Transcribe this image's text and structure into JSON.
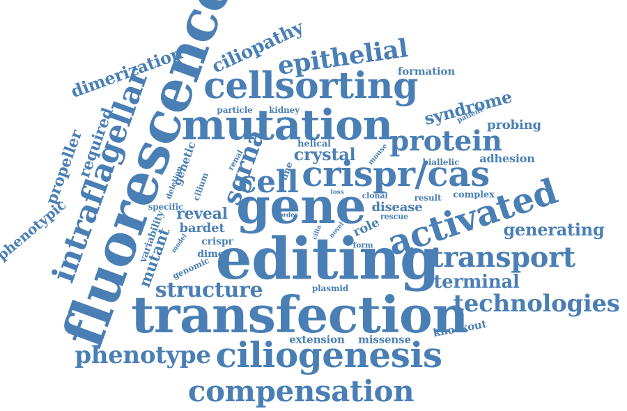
{
  "accent_color": "#4a7fb5",
  "words": [
    "fluorescence",
    "editing",
    "transfection",
    "gene",
    "mutation",
    "cellsorting",
    "crispr/cas",
    "intraflagellar",
    "activated",
    "ciliogenesis",
    "compensation",
    "transport",
    "technologies",
    "protein",
    "phenotype",
    "epithelial",
    "structure",
    "cell",
    "generating",
    "terminal",
    "sgrna",
    "dimerization",
    "ciliopathy",
    "syndrome",
    "propeller",
    "required",
    "phenotypic",
    "reveal",
    "mutant",
    "crystal",
    "disease",
    "probing",
    "adhesion",
    "variability",
    "genetic",
    "formation",
    "knockout",
    "extension",
    "missense",
    "bardet",
    "crispr",
    "dimer",
    "genomic",
    "role",
    "specific",
    "cilium",
    "deletion",
    "complex",
    "result",
    "biallelic",
    "helical",
    "line",
    "particle",
    "kidney",
    "renal",
    "mouse",
    "rescue",
    "clonal",
    "loss",
    "model",
    "order",
    "cilia",
    "novel",
    "form",
    "plasmid",
    "patient"
  ]
}
